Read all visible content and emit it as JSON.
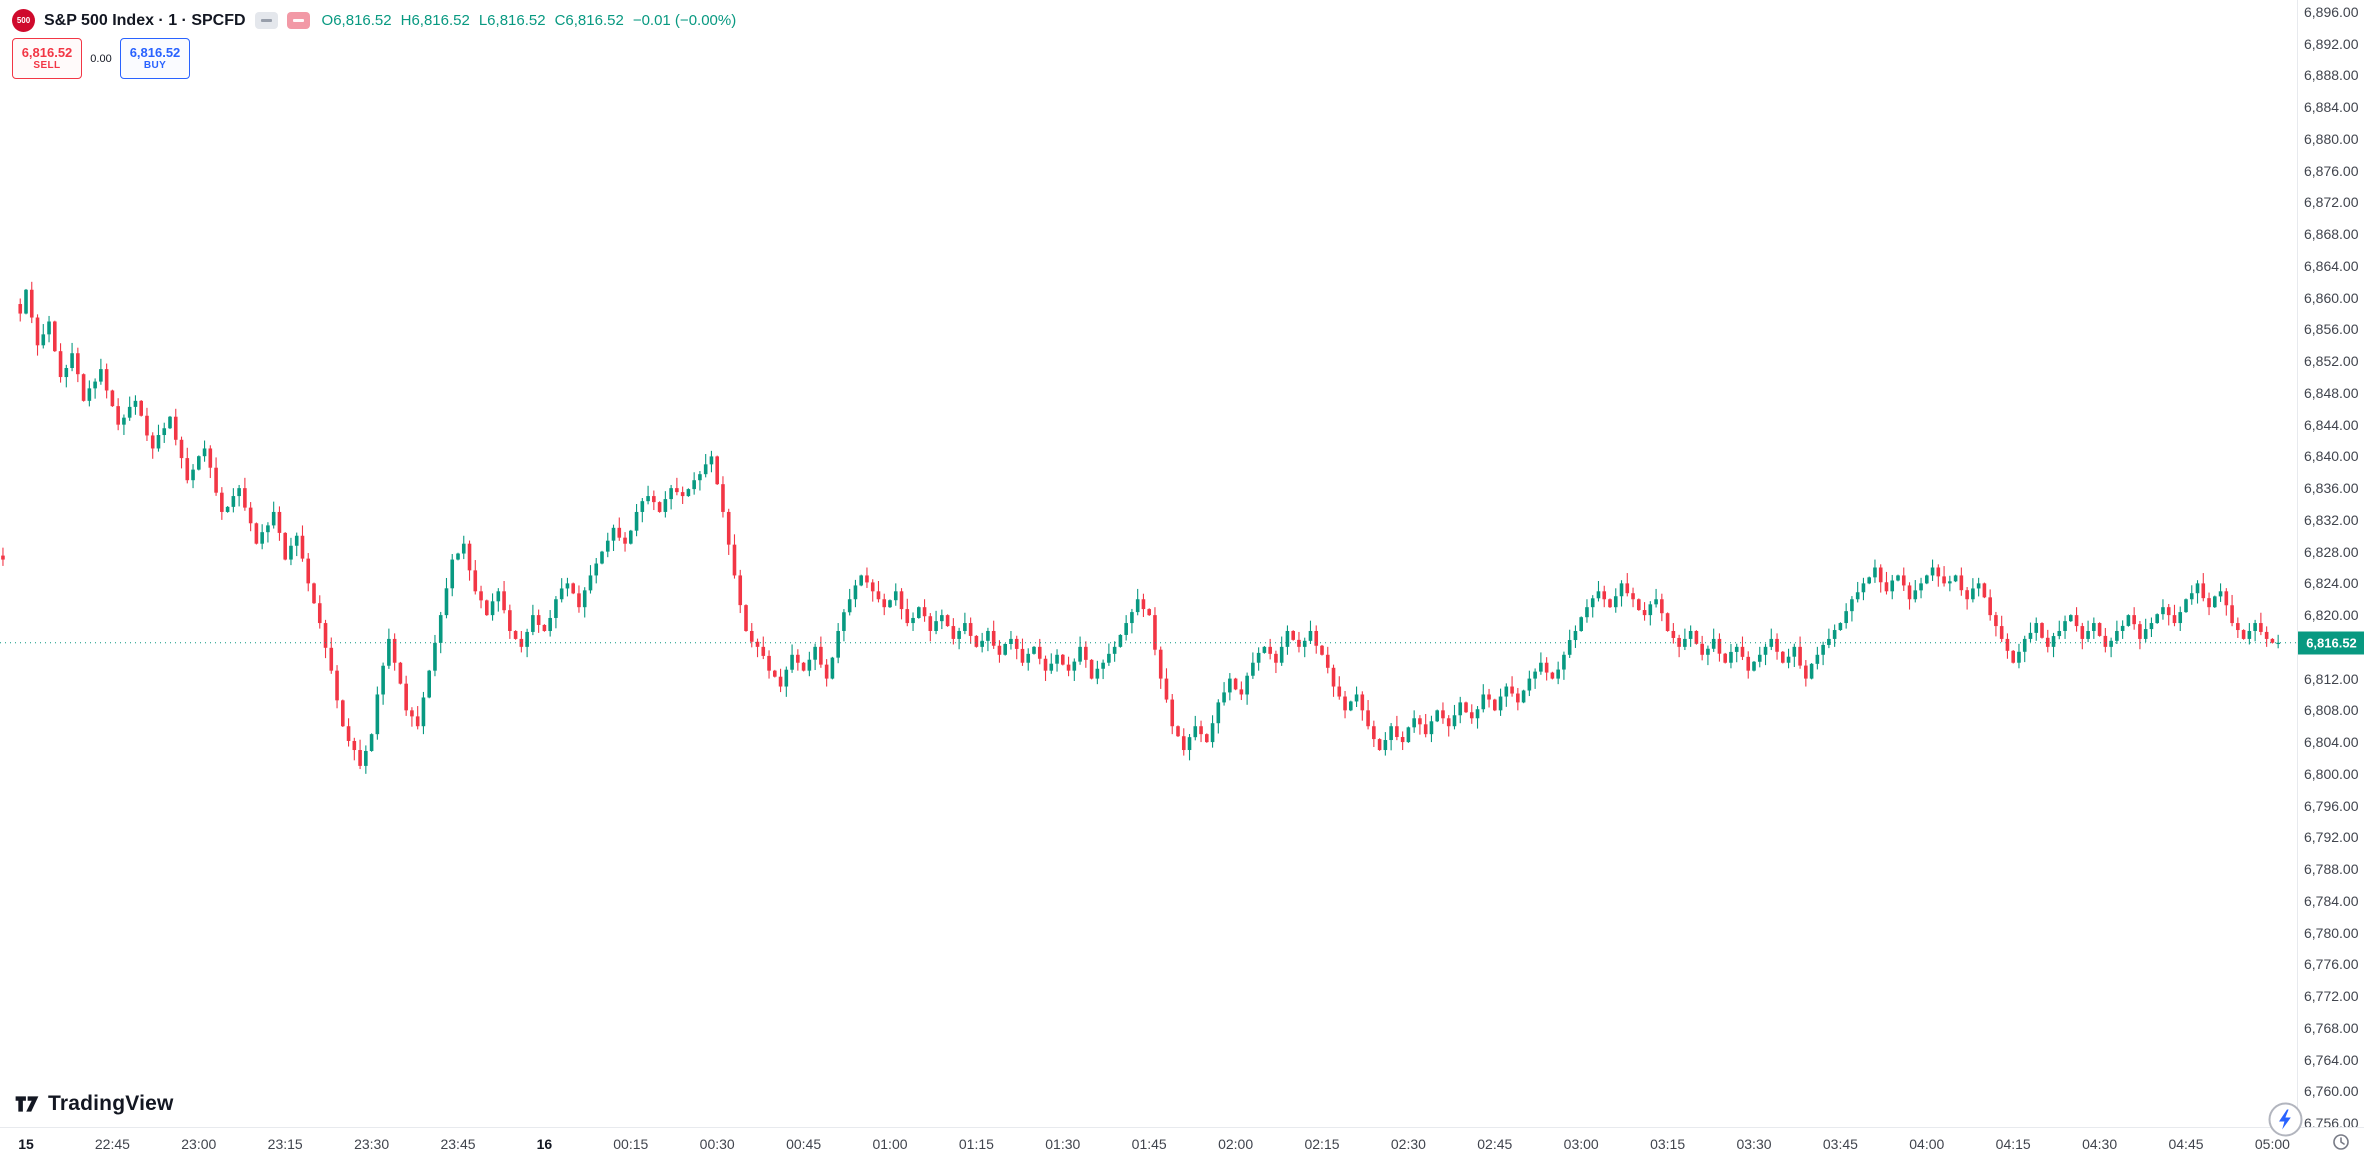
{
  "symbol": {
    "logo_text": "500",
    "title": "S&P 500 Index · 1 · SPCFD",
    "ohlc": {
      "o": "O6,816.52",
      "h": "H6,816.52",
      "l": "L6,816.52",
      "c": "C6,816.52",
      "change": "−0.01 (−0.00%)"
    }
  },
  "trade_panel": {
    "sell_price": "6,816.52",
    "sell_label": "SELL",
    "spread": "0.00",
    "buy_price": "6,816.52",
    "buy_label": "BUY"
  },
  "watermark": "TradingView",
  "icons": {
    "sp500_badge": "red circle with 500",
    "legend_grey": "dash chip",
    "legend_pink": "flag chip",
    "lightning": "instant-trading bolt in circle",
    "clock": "timezone clock",
    "tv_mark": "tradingview 17 mark"
  },
  "price_axis": {
    "top_value": 6896,
    "bottom_value": 6756,
    "step": 4,
    "last_price": "6,816.52",
    "labels": [
      "6,896.00",
      "6,892.00",
      "6,888.00",
      "6,884.00",
      "6,880.00",
      "6,876.00",
      "6,872.00",
      "6,868.00",
      "6,864.00",
      "6,860.00",
      "6,856.00",
      "6,852.00",
      "6,848.00",
      "6,844.00",
      "6,840.00",
      "6,836.00",
      "6,832.00",
      "6,828.00",
      "6,824.00",
      "6,820.00",
      "6,816.00",
      "6,812.00",
      "6,808.00",
      "6,804.00",
      "6,800.00",
      "6,796.00",
      "6,792.00",
      "6,788.00",
      "6,784.00",
      "6,780.00",
      "6,776.00",
      "6,772.00",
      "6,768.00",
      "6,764.00",
      "6,760.00",
      "6,756.00"
    ]
  },
  "time_axis": {
    "labels": [
      {
        "label": "15",
        "slot": 0,
        "day": true
      },
      {
        "label": "22:45",
        "slot": 15
      },
      {
        "label": "23:00",
        "slot": 30
      },
      {
        "label": "23:15",
        "slot": 45
      },
      {
        "label": "23:30",
        "slot": 60
      },
      {
        "label": "23:45",
        "slot": 75
      },
      {
        "label": "16",
        "slot": 90,
        "day": true
      },
      {
        "label": "00:15",
        "slot": 105
      },
      {
        "label": "00:30",
        "slot": 120
      },
      {
        "label": "00:45",
        "slot": 135
      },
      {
        "label": "01:00",
        "slot": 150
      },
      {
        "label": "01:15",
        "slot": 165
      },
      {
        "label": "01:30",
        "slot": 180
      },
      {
        "label": "01:45",
        "slot": 195
      },
      {
        "label": "02:00",
        "slot": 210
      },
      {
        "label": "02:15",
        "slot": 225
      },
      {
        "label": "02:30",
        "slot": 240
      },
      {
        "label": "02:45",
        "slot": 255
      },
      {
        "label": "03:00",
        "slot": 270
      },
      {
        "label": "03:15",
        "slot": 285
      },
      {
        "label": "03:30",
        "slot": 300
      },
      {
        "label": "03:45",
        "slot": 315
      },
      {
        "label": "04:00",
        "slot": 330
      },
      {
        "label": "04:15",
        "slot": 345
      },
      {
        "label": "04:30",
        "slot": 360
      },
      {
        "label": "04:45",
        "slot": 375
      },
      {
        "label": "05:00",
        "slot": 390
      }
    ]
  },
  "chart_data": {
    "type": "candlestick",
    "symbol": "SPCFD",
    "interval_minutes": 1,
    "title": "S&P 500 Index 1m",
    "ylim": [
      6756,
      6896
    ],
    "x_span": "22:29 (day 15) to 05:01 (day 16)",
    "grid": "off",
    "last_price": 6816.52,
    "colors": {
      "up": "#089981",
      "down": "#f23645"
    },
    "left_fragment": {
      "slot": -4,
      "o": 6827.5,
      "h": 6828.5,
      "l": 6826.2,
      "c": 6827.0
    },
    "anchors_note": "close-price path read from chart; [minute slot from 22:30, price]; 1-min candles interpolated between anchors",
    "anchors": [
      [
        -1,
        6858
      ],
      [
        0,
        6861
      ],
      [
        2,
        6854
      ],
      [
        4,
        6857
      ],
      [
        6,
        6850
      ],
      [
        8,
        6853
      ],
      [
        10,
        6847
      ],
      [
        13,
        6851
      ],
      [
        16,
        6844
      ],
      [
        19,
        6847
      ],
      [
        22,
        6841
      ],
      [
        25,
        6845
      ],
      [
        28,
        6837
      ],
      [
        31,
        6841
      ],
      [
        34,
        6833
      ],
      [
        37,
        6836
      ],
      [
        40,
        6829
      ],
      [
        43,
        6833
      ],
      [
        45,
        6827
      ],
      [
        47,
        6830
      ],
      [
        49,
        6824
      ],
      [
        51,
        6819
      ],
      [
        53,
        6813
      ],
      [
        55,
        6806
      ],
      [
        57,
        6803
      ],
      [
        58,
        6801
      ],
      [
        60,
        6805
      ],
      [
        61,
        6810
      ],
      [
        63,
        6817
      ],
      [
        64,
        6814
      ],
      [
        66,
        6808
      ],
      [
        68,
        6806
      ],
      [
        70,
        6813
      ],
      [
        72,
        6820
      ],
      [
        74,
        6827
      ],
      [
        76,
        6829
      ],
      [
        78,
        6823
      ],
      [
        80,
        6820
      ],
      [
        82,
        6823
      ],
      [
        84,
        6818
      ],
      [
        86,
        6816
      ],
      [
        88,
        6820
      ],
      [
        90,
        6818
      ],
      [
        92,
        6822
      ],
      [
        94,
        6824
      ],
      [
        96,
        6821
      ],
      [
        98,
        6825
      ],
      [
        100,
        6828
      ],
      [
        102,
        6831
      ],
      [
        104,
        6829
      ],
      [
        106,
        6833
      ],
      [
        108,
        6835
      ],
      [
        110,
        6833
      ],
      [
        112,
        6836
      ],
      [
        114,
        6835
      ],
      [
        116,
        6837
      ],
      [
        118,
        6839
      ],
      [
        119,
        6840
      ],
      [
        121,
        6833
      ],
      [
        123,
        6825
      ],
      [
        125,
        6818
      ],
      [
        127,
        6816
      ],
      [
        129,
        6813
      ],
      [
        131,
        6811
      ],
      [
        133,
        6815
      ],
      [
        135,
        6813
      ],
      [
        137,
        6816
      ],
      [
        139,
        6812
      ],
      [
        141,
        6818
      ],
      [
        143,
        6822
      ],
      [
        145,
        6825
      ],
      [
        147,
        6823
      ],
      [
        149,
        6821
      ],
      [
        151,
        6823
      ],
      [
        153,
        6819
      ],
      [
        155,
        6821
      ],
      [
        157,
        6818
      ],
      [
        159,
        6820
      ],
      [
        161,
        6817
      ],
      [
        163,
        6819
      ],
      [
        165,
        6816
      ],
      [
        167,
        6818
      ],
      [
        169,
        6815
      ],
      [
        171,
        6817
      ],
      [
        173,
        6814
      ],
      [
        175,
        6816
      ],
      [
        177,
        6813
      ],
      [
        179,
        6815
      ],
      [
        181,
        6813
      ],
      [
        183,
        6816
      ],
      [
        185,
        6812
      ],
      [
        187,
        6814
      ],
      [
        189,
        6816
      ],
      [
        191,
        6819
      ],
      [
        193,
        6822
      ],
      [
        195,
        6820
      ],
      [
        197,
        6812
      ],
      [
        199,
        6806
      ],
      [
        201,
        6803
      ],
      [
        203,
        6806
      ],
      [
        205,
        6804
      ],
      [
        207,
        6809
      ],
      [
        209,
        6812
      ],
      [
        211,
        6810
      ],
      [
        213,
        6814
      ],
      [
        215,
        6816
      ],
      [
        217,
        6814
      ],
      [
        219,
        6818
      ],
      [
        221,
        6816
      ],
      [
        223,
        6818
      ],
      [
        225,
        6815
      ],
      [
        227,
        6811
      ],
      [
        229,
        6808
      ],
      [
        231,
        6810
      ],
      [
        233,
        6806
      ],
      [
        235,
        6803
      ],
      [
        237,
        6806
      ],
      [
        239,
        6804
      ],
      [
        241,
        6807
      ],
      [
        243,
        6805
      ],
      [
        245,
        6808
      ],
      [
        247,
        6806
      ],
      [
        249,
        6809
      ],
      [
        251,
        6807
      ],
      [
        253,
        6810
      ],
      [
        255,
        6808
      ],
      [
        257,
        6811
      ],
      [
        259,
        6809
      ],
      [
        261,
        6812
      ],
      [
        263,
        6814
      ],
      [
        265,
        6812
      ],
      [
        267,
        6815
      ],
      [
        269,
        6818
      ],
      [
        271,
        6821
      ],
      [
        273,
        6823
      ],
      [
        275,
        6821
      ],
      [
        277,
        6824
      ],
      [
        279,
        6822
      ],
      [
        281,
        6820
      ],
      [
        283,
        6822
      ],
      [
        285,
        6818
      ],
      [
        287,
        6816
      ],
      [
        289,
        6818
      ],
      [
        291,
        6815
      ],
      [
        293,
        6817
      ],
      [
        295,
        6814
      ],
      [
        297,
        6816
      ],
      [
        299,
        6813
      ],
      [
        301,
        6815
      ],
      [
        303,
        6817
      ],
      [
        305,
        6814
      ],
      [
        307,
        6816
      ],
      [
        309,
        6812
      ],
      [
        311,
        6815
      ],
      [
        313,
        6817
      ],
      [
        315,
        6819
      ],
      [
        317,
        6822
      ],
      [
        319,
        6824
      ],
      [
        321,
        6826
      ],
      [
        323,
        6823
      ],
      [
        325,
        6825
      ],
      [
        327,
        6822
      ],
      [
        329,
        6824
      ],
      [
        331,
        6826
      ],
      [
        333,
        6824
      ],
      [
        335,
        6825
      ],
      [
        337,
        6822
      ],
      [
        339,
        6824
      ],
      [
        341,
        6820
      ],
      [
        343,
        6817
      ],
      [
        345,
        6814
      ],
      [
        347,
        6817
      ],
      [
        349,
        6819
      ],
      [
        351,
        6816
      ],
      [
        353,
        6818
      ],
      [
        355,
        6820
      ],
      [
        357,
        6817
      ],
      [
        359,
        6819
      ],
      [
        361,
        6816
      ],
      [
        363,
        6818
      ],
      [
        365,
        6820
      ],
      [
        367,
        6817
      ],
      [
        369,
        6819
      ],
      [
        371,
        6821
      ],
      [
        373,
        6819
      ],
      [
        375,
        6822
      ],
      [
        377,
        6824
      ],
      [
        379,
        6821
      ],
      [
        381,
        6823
      ],
      [
        383,
        6819
      ],
      [
        385,
        6817
      ],
      [
        387,
        6819
      ],
      [
        389,
        6817
      ],
      [
        391,
        6816.52
      ]
    ]
  }
}
